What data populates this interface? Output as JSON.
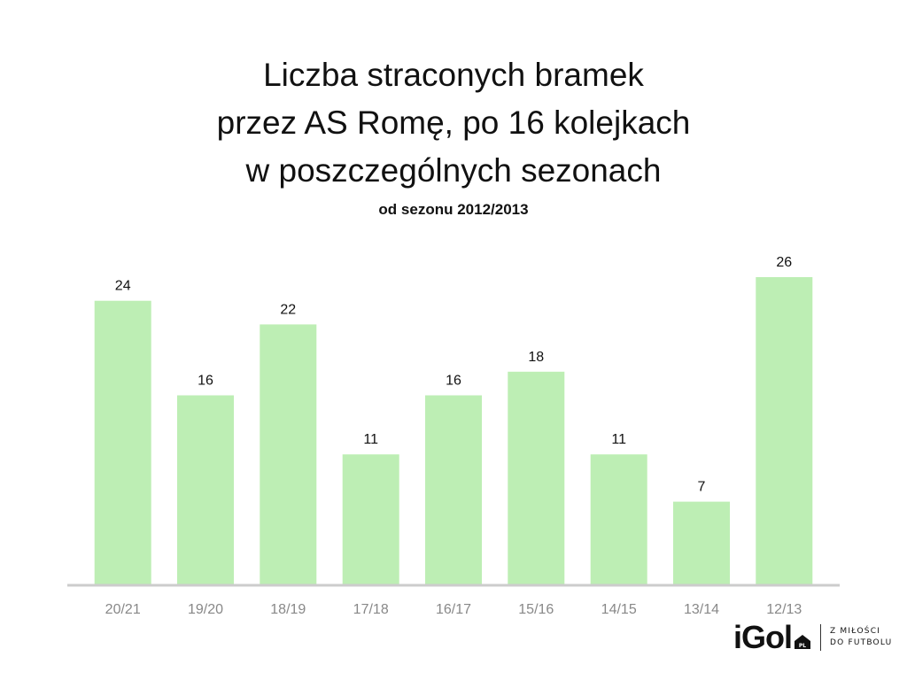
{
  "chart_data": {
    "type": "bar",
    "title_lines": [
      "Liczba straconych bramek",
      "przez AS Romę, po 16 kolejkach",
      "w poszczególnych sezonach"
    ],
    "subtitle": "od sezonu 2012/2013",
    "categories": [
      "20/21",
      "19/20",
      "18/19",
      "17/18",
      "16/17",
      "15/16",
      "14/15",
      "13/14",
      "12/13"
    ],
    "values": [
      24,
      16,
      22,
      11,
      16,
      18,
      11,
      7,
      26
    ],
    "ylim": [
      0,
      26
    ],
    "bar_color": "#bdeeb4",
    "axis_color": "#cccccc",
    "tick_label_color": "#888888",
    "grid": false
  },
  "logo": {
    "text": "iGol",
    "suffix": "PL",
    "tagline_line1": "Z MIŁOŚCI",
    "tagline_line2": "DO FUTBOLU"
  }
}
